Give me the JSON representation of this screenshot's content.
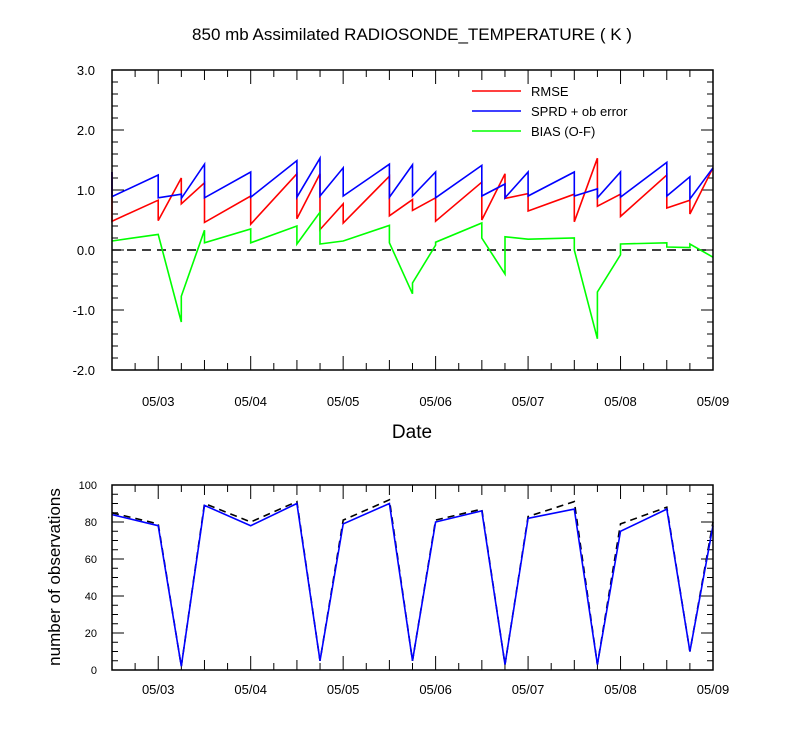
{
  "colors": {
    "rmse": "#ff0000",
    "sprd": "#0000ff",
    "bias": "#00ff00",
    "zero_line": "#000000",
    "obs_used": "#0000ff",
    "obs_total": "#000000"
  },
  "chart_data": [
    {
      "type": "line",
      "title": "850 mb Assimilated RADIOSONDE_TEMPERATURE ( K )",
      "xlabel": "Date",
      "ylabel": "",
      "xlim": [
        "05/02 12:00",
        "05/09 00:00"
      ],
      "ylim": [
        -2.0,
        3.0
      ],
      "yticks": [
        "3.0",
        "2.0",
        "1.0",
        "0.0",
        "-1.0",
        "-2.0"
      ],
      "xticks": [
        "05/03",
        "05/04",
        "05/05",
        "05/06",
        "05/07",
        "05/08",
        "05/09"
      ],
      "legend_position": "top-right",
      "reference_line": 0.0,
      "series": [
        {
          "name": "RMSE",
          "points": [
            [
              "05/02 12:00",
              1.3
            ],
            [
              "05/02 12:00",
              0.48
            ],
            [
              "05/03 00:00",
              0.83
            ],
            [
              "05/03 00:00",
              0.49
            ],
            [
              "05/03 06:00",
              1.2
            ],
            [
              "05/03 06:00",
              0.77
            ],
            [
              "05/03 12:00",
              1.12
            ],
            [
              "05/03 12:00",
              0.46
            ],
            [
              "05/04 00:00",
              0.9
            ],
            [
              "05/04 00:00",
              0.43
            ],
            [
              "05/04 12:00",
              1.27
            ],
            [
              "05/04 12:00",
              0.52
            ],
            [
              "05/04 18:00",
              1.27
            ],
            [
              "05/04 18:00",
              0.34
            ],
            [
              "05/05 00:00",
              0.77
            ],
            [
              "05/05 00:00",
              0.45
            ],
            [
              "05/05 12:00",
              1.23
            ],
            [
              "05/05 12:00",
              0.57
            ],
            [
              "05/05 18:00",
              0.84
            ],
            [
              "05/05 18:00",
              0.66
            ],
            [
              "05/06 00:00",
              0.87
            ],
            [
              "05/06 00:00",
              0.48
            ],
            [
              "05/06 12:00",
              1.13
            ],
            [
              "05/06 12:00",
              0.5
            ],
            [
              "05/06 18:00",
              1.27
            ],
            [
              "05/06 18:00",
              0.86
            ],
            [
              "05/07 00:00",
              0.94
            ],
            [
              "05/07 00:00",
              0.65
            ],
            [
              "05/07 12:00",
              0.93
            ],
            [
              "05/07 12:00",
              0.47
            ],
            [
              "05/07 18:00",
              1.53
            ],
            [
              "05/07 18:00",
              0.73
            ],
            [
              "05/08 00:00",
              0.93
            ],
            [
              "05/08 00:00",
              0.56
            ],
            [
              "05/08 12:00",
              1.25
            ],
            [
              "05/08 12:00",
              0.7
            ],
            [
              "05/08 18:00",
              0.83
            ],
            [
              "05/08 18:00",
              0.6
            ],
            [
              "05/09 00:00",
              1.37
            ]
          ]
        },
        {
          "name": "SPRD + ob error",
          "points": [
            [
              "05/02 12:00",
              1.3
            ],
            [
              "05/02 12:00",
              0.89
            ],
            [
              "05/03 00:00",
              1.25
            ],
            [
              "05/03 00:00",
              0.87
            ],
            [
              "05/03 06:00",
              0.93
            ],
            [
              "05/03 06:00",
              0.86
            ],
            [
              "05/03 12:00",
              1.43
            ],
            [
              "05/03 12:00",
              0.87
            ],
            [
              "05/04 00:00",
              1.3
            ],
            [
              "05/04 00:00",
              0.88
            ],
            [
              "05/04 12:00",
              1.49
            ],
            [
              "05/04 12:00",
              0.88
            ],
            [
              "05/04 18:00",
              1.53
            ],
            [
              "05/04 18:00",
              0.9
            ],
            [
              "05/05 00:00",
              1.37
            ],
            [
              "05/05 00:00",
              0.9
            ],
            [
              "05/05 12:00",
              1.43
            ],
            [
              "05/05 12:00",
              0.88
            ],
            [
              "05/05 18:00",
              1.42
            ],
            [
              "05/05 18:00",
              0.9
            ],
            [
              "05/06 00:00",
              1.3
            ],
            [
              "05/06 00:00",
              0.87
            ],
            [
              "05/06 12:00",
              1.41
            ],
            [
              "05/06 12:00",
              0.9
            ],
            [
              "05/06 18:00",
              1.1
            ],
            [
              "05/06 18:00",
              0.87
            ],
            [
              "05/07 00:00",
              1.3
            ],
            [
              "05/07 00:00",
              0.9
            ],
            [
              "05/07 12:00",
              1.3
            ],
            [
              "05/07 12:00",
              0.9
            ],
            [
              "05/07 18:00",
              1.02
            ],
            [
              "05/07 18:00",
              0.87
            ],
            [
              "05/08 00:00",
              1.3
            ],
            [
              "05/08 00:00",
              0.88
            ],
            [
              "05/08 12:00",
              1.46
            ],
            [
              "05/08 12:00",
              0.9
            ],
            [
              "05/08 18:00",
              1.22
            ],
            [
              "05/08 18:00",
              0.85
            ],
            [
              "05/09 00:00",
              1.37
            ]
          ]
        },
        {
          "name": "BIAS (O-F)",
          "points": [
            [
              "05/02 12:00",
              0.15
            ],
            [
              "05/03 00:00",
              0.26
            ],
            [
              "05/03 06:00",
              -1.2
            ],
            [
              "05/03 06:00",
              -0.77
            ],
            [
              "05/03 12:00",
              0.33
            ],
            [
              "05/03 12:00",
              0.12
            ],
            [
              "05/04 00:00",
              0.35
            ],
            [
              "05/04 00:00",
              0.12
            ],
            [
              "05/04 12:00",
              0.4
            ],
            [
              "05/04 12:00",
              0.1
            ],
            [
              "05/04 18:00",
              0.63
            ],
            [
              "05/04 18:00",
              0.1
            ],
            [
              "05/05 00:00",
              0.15
            ],
            [
              "05/05 12:00",
              0.41
            ],
            [
              "05/05 12:00",
              0.12
            ],
            [
              "05/05 18:00",
              -0.73
            ],
            [
              "05/05 18:00",
              -0.55
            ],
            [
              "05/06 00:00",
              0.08
            ],
            [
              "05/06 00:00",
              0.13
            ],
            [
              "05/06 12:00",
              0.45
            ],
            [
              "05/06 12:00",
              0.2
            ],
            [
              "05/06 18:00",
              -0.4
            ],
            [
              "05/06 18:00",
              0.22
            ],
            [
              "05/07 00:00",
              0.18
            ],
            [
              "05/07 12:00",
              0.2
            ],
            [
              "05/07 12:00",
              0.0
            ],
            [
              "05/07 18:00",
              -1.48
            ],
            [
              "05/07 18:00",
              -0.7
            ],
            [
              "05/08 00:00",
              -0.08
            ],
            [
              "05/08 00:00",
              0.1
            ],
            [
              "05/08 12:00",
              0.12
            ],
            [
              "05/08 12:00",
              0.05
            ],
            [
              "05/08 18:00",
              0.04
            ],
            [
              "05/08 18:00",
              0.1
            ],
            [
              "05/09 00:00",
              -0.12
            ]
          ]
        }
      ]
    },
    {
      "type": "line",
      "title": "",
      "xlabel": "",
      "ylabel": "number of observations",
      "xlim": [
        "05/02 12:00",
        "05/09 00:00"
      ],
      "ylim": [
        0,
        100
      ],
      "yticks": [
        "100",
        "80",
        "60",
        "40",
        "20",
        "0"
      ],
      "xticks": [
        "05/03",
        "05/04",
        "05/05",
        "05/06",
        "05/07",
        "05/08",
        "05/09"
      ],
      "series": [
        {
          "line_style": "dashed",
          "points": [
            [
              "05/02 12:00",
              85
            ],
            [
              "05/03 00:00",
              79
            ],
            [
              "05/03 06:00",
              2
            ],
            [
              "05/03 12:00",
              90
            ],
            [
              "05/04 00:00",
              80
            ],
            [
              "05/04 12:00",
              91
            ],
            [
              "05/04 18:00",
              5
            ],
            [
              "05/05 00:00",
              81
            ],
            [
              "05/05 12:00",
              92
            ],
            [
              "05/05 18:00",
              5
            ],
            [
              "05/06 00:00",
              81
            ],
            [
              "05/06 12:00",
              87
            ],
            [
              "05/06 18:00",
              3
            ],
            [
              "05/07 00:00",
              83
            ],
            [
              "05/07 12:00",
              91
            ],
            [
              "05/07 18:00",
              3
            ],
            [
              "05/08 00:00",
              79
            ],
            [
              "05/08 12:00",
              88
            ],
            [
              "05/08 18:00",
              10
            ],
            [
              "05/09 00:00",
              80
            ]
          ]
        },
        {
          "line_style": "solid",
          "points": [
            [
              "05/02 12:00",
              84
            ],
            [
              "05/03 00:00",
              78
            ],
            [
              "05/03 06:00",
              2
            ],
            [
              "05/03 12:00",
              89
            ],
            [
              "05/04 00:00",
              78
            ],
            [
              "05/04 12:00",
              90
            ],
            [
              "05/04 18:00",
              5
            ],
            [
              "05/05 00:00",
              79
            ],
            [
              "05/05 12:00",
              90
            ],
            [
              "05/05 18:00",
              5
            ],
            [
              "05/06 00:00",
              80
            ],
            [
              "05/06 12:00",
              86
            ],
            [
              "05/06 18:00",
              3
            ],
            [
              "05/07 00:00",
              82
            ],
            [
              "05/07 12:00",
              87
            ],
            [
              "05/07 18:00",
              3
            ],
            [
              "05/08 00:00",
              75
            ],
            [
              "05/08 12:00",
              87
            ],
            [
              "05/08 18:00",
              10
            ],
            [
              "05/09 00:00",
              78
            ]
          ]
        }
      ]
    }
  ]
}
